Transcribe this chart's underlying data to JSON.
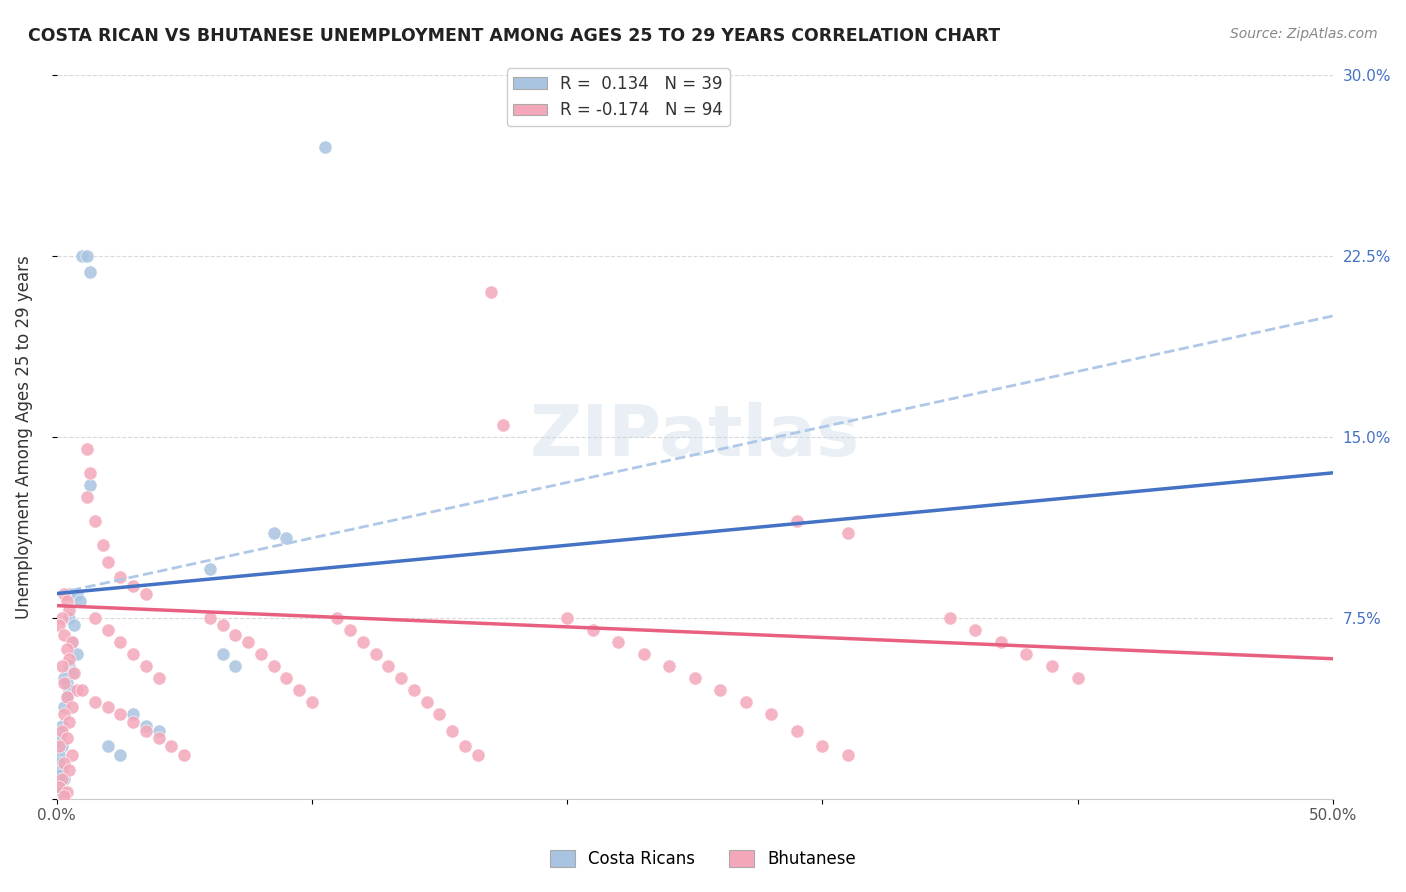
{
  "title": "COSTA RICAN VS BHUTANESE UNEMPLOYMENT AMONG AGES 25 TO 29 YEARS CORRELATION CHART",
  "source": "Source: ZipAtlas.com",
  "ylabel": "Unemployment Among Ages 25 to 29 years",
  "xlim": [
    0,
    0.5
  ],
  "ylim": [
    0,
    0.3
  ],
  "costa_rican_R": "0.134",
  "costa_rican_N": "39",
  "bhutanese_R": "-0.174",
  "bhutanese_N": "94",
  "costa_rican_color": "#a8c4e0",
  "bhutanese_color": "#f4a7b9",
  "costa_rican_line_color": "#4472c4",
  "bhutanese_line_color": "#e86080",
  "trend_line_color": "#b0c8e8",
  "background_color": "#ffffff",
  "grid_color": "#d0d0d0",
  "costa_rican_scatter": [
    [
      0.005,
      0.085
    ],
    [
      0.008,
      0.085
    ],
    [
      0.009,
      0.082
    ],
    [
      0.01,
      0.225
    ],
    [
      0.012,
      0.225
    ],
    [
      0.013,
      0.218
    ],
    [
      0.005,
      0.075
    ],
    [
      0.007,
      0.072
    ],
    [
      0.006,
      0.065
    ],
    [
      0.008,
      0.06
    ],
    [
      0.005,
      0.055
    ],
    [
      0.006,
      0.052
    ],
    [
      0.003,
      0.05
    ],
    [
      0.004,
      0.048
    ],
    [
      0.005,
      0.045
    ],
    [
      0.004,
      0.042
    ],
    [
      0.003,
      0.038
    ],
    [
      0.002,
      0.03
    ],
    [
      0.001,
      0.025
    ],
    [
      0.002,
      0.022
    ],
    [
      0.001,
      0.018
    ],
    [
      0.001,
      0.015
    ],
    [
      0.002,
      0.012
    ],
    [
      0.001,
      0.01
    ],
    [
      0.003,
      0.008
    ],
    [
      0.001,
      0.005
    ],
    [
      0.002,
      0.003
    ],
    [
      0.105,
      0.27
    ],
    [
      0.013,
      0.13
    ],
    [
      0.085,
      0.11
    ],
    [
      0.09,
      0.108
    ],
    [
      0.06,
      0.095
    ],
    [
      0.065,
      0.06
    ],
    [
      0.07,
      0.055
    ],
    [
      0.03,
      0.035
    ],
    [
      0.035,
      0.03
    ],
    [
      0.04,
      0.028
    ],
    [
      0.02,
      0.022
    ],
    [
      0.025,
      0.018
    ]
  ],
  "bhutanese_scatter": [
    [
      0.003,
      0.085
    ],
    [
      0.004,
      0.082
    ],
    [
      0.005,
      0.078
    ],
    [
      0.002,
      0.075
    ],
    [
      0.001,
      0.072
    ],
    [
      0.003,
      0.068
    ],
    [
      0.006,
      0.065
    ],
    [
      0.004,
      0.062
    ],
    [
      0.005,
      0.058
    ],
    [
      0.002,
      0.055
    ],
    [
      0.007,
      0.052
    ],
    [
      0.003,
      0.048
    ],
    [
      0.008,
      0.045
    ],
    [
      0.004,
      0.042
    ],
    [
      0.006,
      0.038
    ],
    [
      0.003,
      0.035
    ],
    [
      0.005,
      0.032
    ],
    [
      0.002,
      0.028
    ],
    [
      0.004,
      0.025
    ],
    [
      0.001,
      0.022
    ],
    [
      0.006,
      0.018
    ],
    [
      0.003,
      0.015
    ],
    [
      0.005,
      0.012
    ],
    [
      0.002,
      0.008
    ],
    [
      0.001,
      0.005
    ],
    [
      0.004,
      0.003
    ],
    [
      0.003,
      0.001
    ],
    [
      0.012,
      0.145
    ],
    [
      0.013,
      0.135
    ],
    [
      0.012,
      0.125
    ],
    [
      0.015,
      0.115
    ],
    [
      0.018,
      0.105
    ],
    [
      0.02,
      0.098
    ],
    [
      0.025,
      0.092
    ],
    [
      0.03,
      0.088
    ],
    [
      0.035,
      0.085
    ],
    [
      0.015,
      0.075
    ],
    [
      0.02,
      0.07
    ],
    [
      0.025,
      0.065
    ],
    [
      0.03,
      0.06
    ],
    [
      0.035,
      0.055
    ],
    [
      0.04,
      0.05
    ],
    [
      0.01,
      0.045
    ],
    [
      0.015,
      0.04
    ],
    [
      0.02,
      0.038
    ],
    [
      0.025,
      0.035
    ],
    [
      0.03,
      0.032
    ],
    [
      0.035,
      0.028
    ],
    [
      0.04,
      0.025
    ],
    [
      0.045,
      0.022
    ],
    [
      0.05,
      0.018
    ],
    [
      0.06,
      0.075
    ],
    [
      0.065,
      0.072
    ],
    [
      0.07,
      0.068
    ],
    [
      0.075,
      0.065
    ],
    [
      0.08,
      0.06
    ],
    [
      0.085,
      0.055
    ],
    [
      0.09,
      0.05
    ],
    [
      0.095,
      0.045
    ],
    [
      0.1,
      0.04
    ],
    [
      0.11,
      0.075
    ],
    [
      0.115,
      0.07
    ],
    [
      0.12,
      0.065
    ],
    [
      0.125,
      0.06
    ],
    [
      0.13,
      0.055
    ],
    [
      0.135,
      0.05
    ],
    [
      0.14,
      0.045
    ],
    [
      0.145,
      0.04
    ],
    [
      0.15,
      0.035
    ],
    [
      0.155,
      0.028
    ],
    [
      0.16,
      0.022
    ],
    [
      0.165,
      0.018
    ],
    [
      0.2,
      0.075
    ],
    [
      0.21,
      0.07
    ],
    [
      0.22,
      0.065
    ],
    [
      0.23,
      0.06
    ],
    [
      0.24,
      0.055
    ],
    [
      0.25,
      0.05
    ],
    [
      0.26,
      0.045
    ],
    [
      0.27,
      0.04
    ],
    [
      0.28,
      0.035
    ],
    [
      0.29,
      0.028
    ],
    [
      0.3,
      0.022
    ],
    [
      0.31,
      0.018
    ],
    [
      0.35,
      0.075
    ],
    [
      0.36,
      0.07
    ],
    [
      0.37,
      0.065
    ],
    [
      0.38,
      0.06
    ],
    [
      0.39,
      0.055
    ],
    [
      0.4,
      0.05
    ],
    [
      0.17,
      0.21
    ],
    [
      0.175,
      0.155
    ],
    [
      0.29,
      0.115
    ],
    [
      0.31,
      0.11
    ]
  ]
}
